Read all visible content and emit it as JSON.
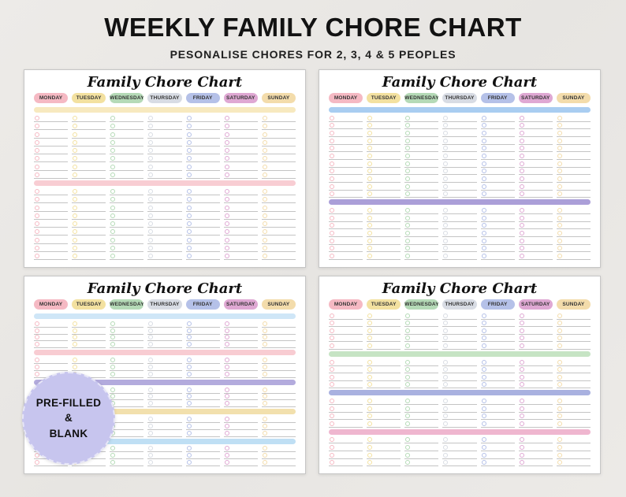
{
  "header": {
    "title": "WEEKLY FAMILY CHORE CHART",
    "subtitle": "PESONALISE CHORES FOR 2, 3, 4 & 5 PEOPLES"
  },
  "days": [
    {
      "label": "MONDAY",
      "color": "#f5b9c3"
    },
    {
      "label": "TUESDAY",
      "color": "#f3e1a0"
    },
    {
      "label": "WEDNESDAY",
      "color": "#b5dab7"
    },
    {
      "label": "THURSDAY",
      "color": "#d8dce4"
    },
    {
      "label": "FRIDAY",
      "color": "#b5c1e8"
    },
    {
      "label": "SATURDAY",
      "color": "#dfa8d3"
    },
    {
      "label": "SUNDAY",
      "color": "#f3dcab"
    }
  ],
  "charts": [
    {
      "title": "Family Chore Chart",
      "sections": [
        {
          "type": "bar",
          "color": "#f7e9bf"
        },
        {
          "type": "rows",
          "count": 8
        },
        {
          "type": "bar",
          "color": "#f8cdd3"
        },
        {
          "type": "rows",
          "count": 9
        }
      ]
    },
    {
      "title": "Family Chore Chart",
      "sections": [
        {
          "type": "bar",
          "color": "#a9cdf1"
        },
        {
          "type": "rows",
          "count": 11
        },
        {
          "type": "bar",
          "color": "#ab9fd8"
        },
        {
          "type": "rows",
          "count": 7
        }
      ]
    },
    {
      "title": "Family Chore Chart",
      "sections": [
        {
          "type": "bar",
          "color": "#cfe6f7"
        },
        {
          "type": "rows",
          "count": 4
        },
        {
          "type": "bar",
          "color": "#f8ccd2"
        },
        {
          "type": "rows",
          "count": 3
        },
        {
          "type": "bar",
          "color": "#b3abdd"
        },
        {
          "type": "rows",
          "count": 3
        },
        {
          "type": "bar",
          "color": "#f2e0ad"
        },
        {
          "type": "rows",
          "count": 3
        },
        {
          "type": "bar",
          "color": "#bfdff4"
        },
        {
          "type": "rows",
          "count": 3
        }
      ]
    },
    {
      "title": "Family Chore Chart",
      "sections": [
        {
          "type": "rows",
          "count": 5
        },
        {
          "type": "bar",
          "color": "#c6e4c4"
        },
        {
          "type": "rows",
          "count": 4
        },
        {
          "type": "bar",
          "color": "#a9b1e0"
        },
        {
          "type": "rows",
          "count": 4
        },
        {
          "type": "bar",
          "color": "#efb6cf"
        },
        {
          "type": "rows",
          "count": 4
        }
      ]
    }
  ],
  "badge": {
    "line1": "PRE-FILLED",
    "line2": "&",
    "line3": "BLANK",
    "color": "#c7c5ee"
  }
}
